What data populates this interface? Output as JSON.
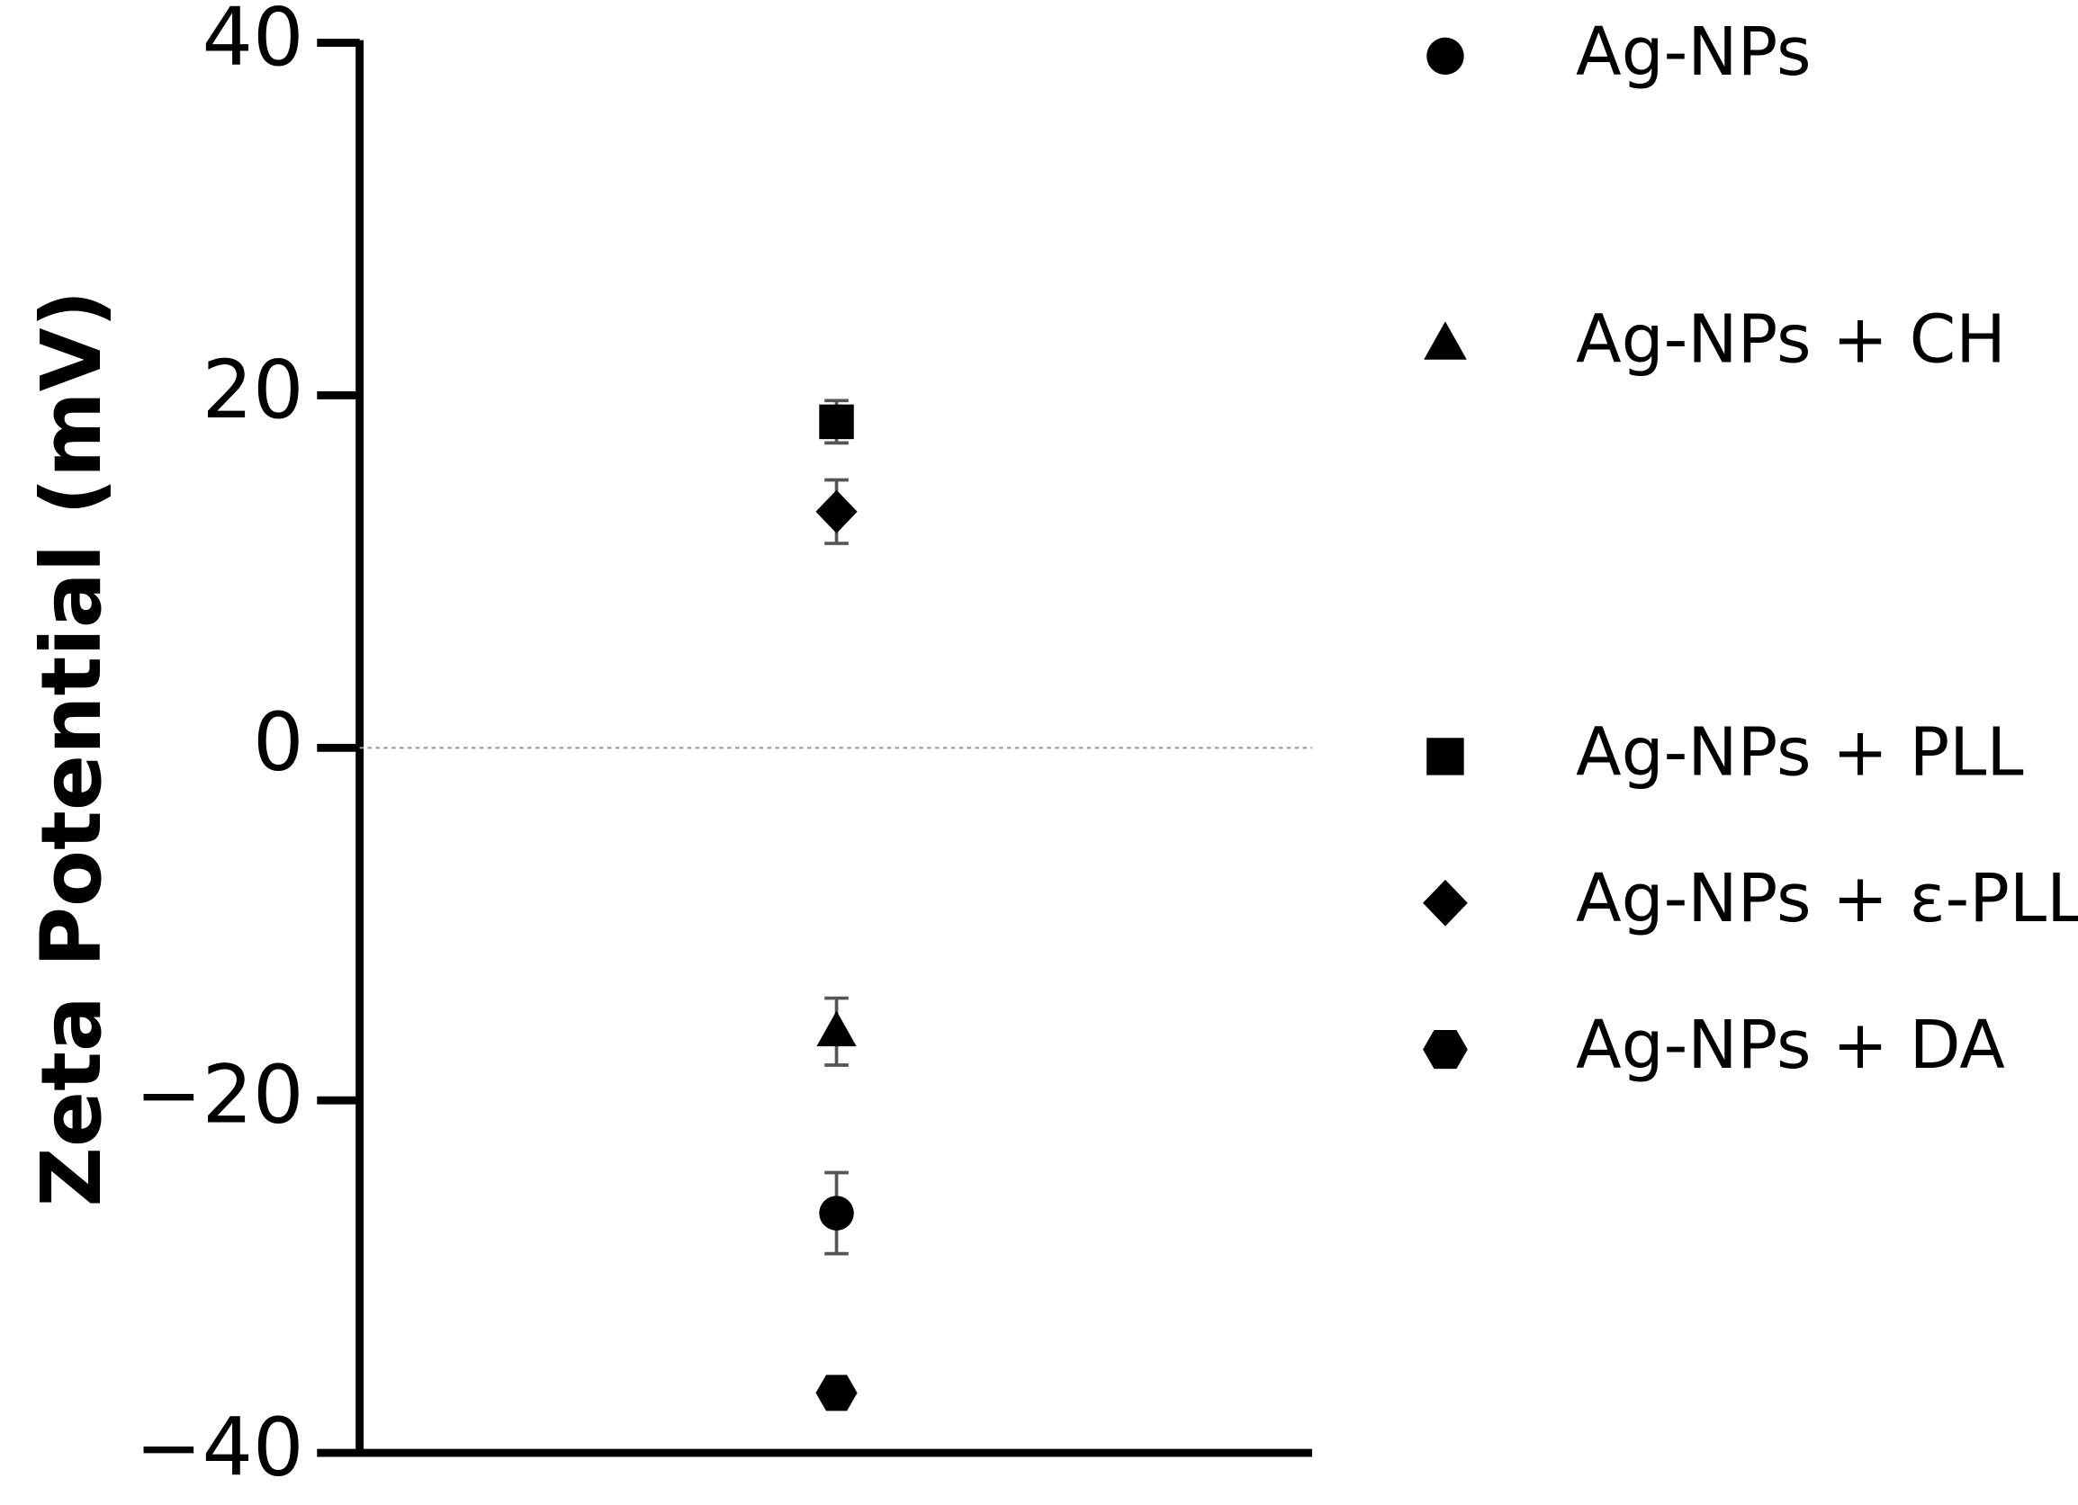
{
  "chart_data": {
    "type": "dot",
    "y_label": "Zeta Potential (mV)",
    "ylim": [
      -40,
      40
    ],
    "yticks": [
      -40,
      -20,
      0,
      20,
      40
    ],
    "yticks_labels": null,
    "zero_line": true,
    "legend": "right",
    "series": [
      {
        "name": "Ag-NPs",
        "color": "#000000",
        "marker": "circle",
        "values": [
          -26.4
        ],
        "errors": [
          2.3
        ]
      },
      {
        "name": "Ag-NPs + CH",
        "color": "#000000",
        "marker": "triangle",
        "values": [
          -16.1
        ],
        "errors": [
          1.9
        ]
      },
      {
        "name": "Ag-NPs + PLL",
        "color": "#000000",
        "marker": "square",
        "values": [
          18.5
        ],
        "errors": [
          1.2
        ]
      },
      {
        "name": "Ag-NPs + ε-PLL",
        "color": "#000000",
        "marker": "diamond",
        "values": [
          13.4
        ],
        "errors": [
          1.8
        ]
      },
      {
        "name": "Ag-NPs + DA",
        "color": "#000000",
        "marker": "hexagon",
        "values": [
          -36.6
        ],
        "errors": [
          0.5
        ]
      }
    ]
  }
}
